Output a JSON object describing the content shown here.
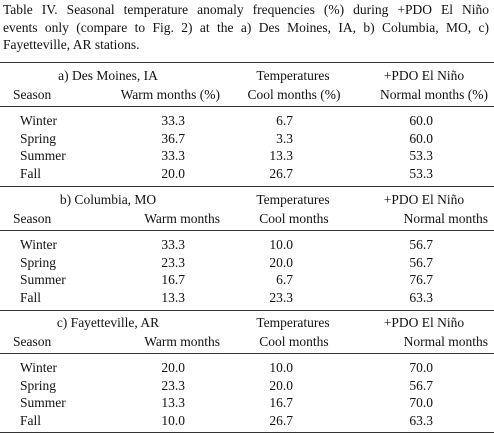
{
  "caption": [
    "Table IV. Seasonal temperature anomaly frequencies (%) during +PDO El Niño",
    "events only (compare to Fig. 2) at the a) Des Moines, IA, b) Columbia, MO, c)",
    "Fayetteville, AR stations."
  ],
  "sections": [
    {
      "station": "a) Des Moines, IA",
      "group_headers": [
        "Temperatures",
        "+PDO El Niño"
      ],
      "headers": [
        "Season",
        "Warm months (%)",
        "Cool months (%)",
        "Normal months (%)"
      ],
      "rows": [
        [
          "Winter",
          "33.3",
          "6.7",
          "60.0"
        ],
        [
          "Spring",
          "36.7",
          "3.3",
          "60.0"
        ],
        [
          "Summer",
          "33.3",
          "13.3",
          "53.3"
        ],
        [
          "Fall",
          "20.0",
          "26.7",
          "53.3"
        ]
      ]
    },
    {
      "station": "b) Columbia, MO",
      "group_headers": [
        "Temperatures",
        "+PDO El Niño"
      ],
      "headers": [
        "Season",
        "Warm months",
        "Cool months",
        "Normal months"
      ],
      "rows": [
        [
          "Winter",
          "33.3",
          "10.0",
          "56.7"
        ],
        [
          "Spring",
          "23.3",
          "20.0",
          "56.7"
        ],
        [
          "Summer",
          "16.7",
          "6.7",
          "76.7"
        ],
        [
          "Fall",
          "13.3",
          "23.3",
          "63.3"
        ]
      ]
    },
    {
      "station": "c) Fayetteville, AR",
      "group_headers": [
        "Temperatures",
        "+PDO El Niño"
      ],
      "headers": [
        "Season",
        "Warm months",
        "Cool months",
        "Normal months"
      ],
      "rows": [
        [
          "Winter",
          "20.0",
          "10.0",
          "70.0"
        ],
        [
          "Spring",
          "23.3",
          "20.0",
          "56.7"
        ],
        [
          "Summer",
          "13.3",
          "16.7",
          "70.0"
        ],
        [
          "Fall",
          "10.0",
          "26.7",
          "63.3"
        ]
      ]
    }
  ]
}
